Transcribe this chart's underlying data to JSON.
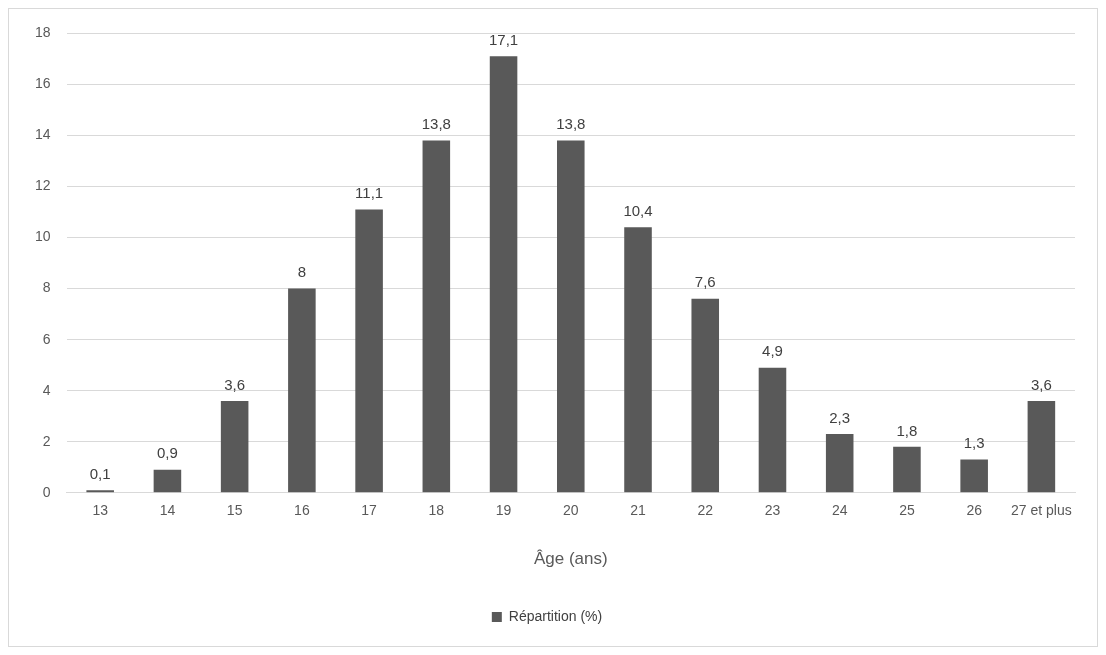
{
  "chart_data": {
    "type": "bar",
    "xlabel": "Âge (ans)",
    "categories": [
      "13",
      "14",
      "15",
      "16",
      "17",
      "18",
      "19",
      "20",
      "21",
      "22",
      "23",
      "24",
      "25",
      "26",
      "27 et plus"
    ],
    "series": [
      {
        "name": "Répartition (%)",
        "color": "#595959",
        "values": [
          0.1,
          0.9,
          3.6,
          8,
          11.1,
          13.8,
          17.1,
          13.8,
          10.4,
          7.6,
          4.9,
          2.3,
          1.8,
          1.3,
          3.6
        ],
        "value_labels": [
          "0,1",
          "0,9",
          "3,6",
          "8",
          "11,1",
          "13,8",
          "17,1",
          "13,8",
          "10,4",
          "7,6",
          "4,9",
          "2,3",
          "1,8",
          "1,3",
          "3,6"
        ]
      }
    ],
    "ylim": [
      0,
      18
    ],
    "yticks": [
      0,
      2,
      4,
      6,
      8,
      10,
      12,
      14,
      16,
      18
    ],
    "grid": "y",
    "legend": "bottom"
  }
}
